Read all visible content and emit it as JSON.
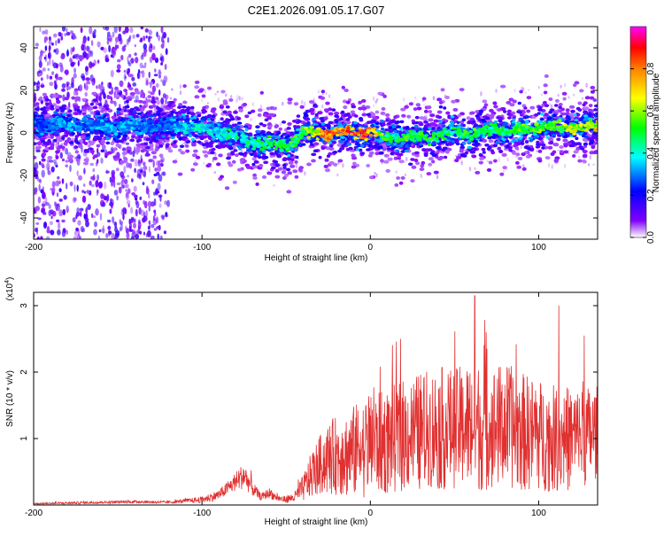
{
  "figure": {
    "title": "C2E1.2026.091.05.17.G07"
  },
  "chart_data": [
    {
      "type": "heatmap",
      "title": "C2E1.2026.091.05.17.G07",
      "xlabel": "Height of straight line (km)",
      "ylabel": "Frequency (Hz)",
      "xlim": [
        -200,
        135
      ],
      "ylim": [
        -50,
        50
      ],
      "xticks": [
        -200,
        -100,
        0,
        100
      ],
      "yticks": [
        -40,
        -20,
        0,
        20,
        40
      ],
      "colorbar": {
        "label": "Normalized spectral amplitude",
        "range": [
          0,
          1
        ],
        "ticks": [
          0.0,
          0.2,
          0.4,
          0.6,
          0.8
        ],
        "tick_labels": [
          "0.0",
          "0.2",
          "0.4",
          "0.6",
          "0.8"
        ],
        "colormap": [
          "#ffffff",
          "#8000ff",
          "#0000ff",
          "#00ffff",
          "#00ff00",
          "#ffff00",
          "#ff8000",
          "#ff0000",
          "#ff00ff"
        ]
      },
      "ridge": {
        "x": [
          -200,
          -190,
          -180,
          -170,
          -160,
          -150,
          -140,
          -130,
          -120,
          -110,
          -100,
          -90,
          -80,
          -70,
          -60,
          -50,
          -40,
          -30,
          -20,
          -10,
          0,
          10,
          20,
          30,
          40,
          50,
          60,
          70,
          80,
          90,
          100,
          110,
          120,
          130
        ],
        "freq": [
          5,
          4,
          4,
          3,
          3,
          3,
          3,
          4,
          3,
          3,
          2,
          1,
          -2,
          -4,
          -5,
          -6,
          0,
          0,
          0,
          0,
          0,
          -2,
          -2,
          -2,
          -1,
          0,
          0,
          1,
          1,
          1,
          3,
          3,
          3,
          3
        ],
        "amplitude": [
          0.3,
          0.3,
          0.35,
          0.3,
          0.35,
          0.35,
          0.35,
          0.3,
          0.3,
          0.4,
          0.4,
          0.4,
          0.5,
          0.45,
          0.5,
          0.5,
          0.55,
          0.8,
          0.9,
          0.9,
          0.85,
          0.5,
          0.55,
          0.55,
          0.5,
          0.5,
          0.55,
          0.5,
          0.5,
          0.55,
          0.6,
          0.55,
          0.65,
          0.7
        ]
      },
      "noise_region": {
        "xmin": -200,
        "xmax": -120
      }
    },
    {
      "type": "line",
      "xlabel": "Height of straight line (km)",
      "ylabel": "SNR (10 * v/v)",
      "scale_label": "(x10",
      "scale_exp": "4",
      "scale_close": ")",
      "xlim": [
        -200,
        135
      ],
      "ylim": [
        0,
        3.2
      ],
      "xticks": [
        -200,
        -100,
        0,
        100
      ],
      "yticks": [
        1,
        2,
        3
      ],
      "color": "#e03030",
      "envelope": {
        "x": [
          -200,
          -180,
          -160,
          -140,
          -120,
          -110,
          -100,
          -90,
          -85,
          -80,
          -75,
          -70,
          -65,
          -60,
          -55,
          -50,
          -45,
          -40,
          -35,
          -30,
          -25,
          -20,
          -15,
          -10,
          -5,
          0,
          10,
          20,
          30,
          40,
          50,
          60,
          70,
          80,
          90,
          100,
          110,
          120,
          130,
          135
        ],
        "mean": [
          0.02,
          0.03,
          0.04,
          0.05,
          0.04,
          0.06,
          0.08,
          0.15,
          0.25,
          0.35,
          0.45,
          0.25,
          0.12,
          0.18,
          0.1,
          0.08,
          0.12,
          0.25,
          0.45,
          0.6,
          0.7,
          0.75,
          0.75,
          0.8,
          0.85,
          0.9,
          0.95,
          1.05,
          1.1,
          1.15,
          1.15,
          1.2,
          1.15,
          1.2,
          1.1,
          1.05,
          1.0,
          1.0,
          1.05,
          1.1
        ],
        "spread": [
          0.01,
          0.02,
          0.02,
          0.02,
          0.02,
          0.03,
          0.05,
          0.08,
          0.1,
          0.15,
          0.2,
          0.12,
          0.05,
          0.08,
          0.05,
          0.05,
          0.08,
          0.2,
          0.35,
          0.45,
          0.55,
          0.6,
          0.65,
          0.7,
          0.75,
          0.75,
          0.8,
          0.85,
          0.9,
          0.95,
          0.9,
          1.0,
          0.95,
          0.95,
          0.9,
          0.85,
          0.8,
          0.8,
          0.75,
          0.7
        ]
      },
      "peaks": [
        {
          "x": 62,
          "y": 3.15
        },
        {
          "x": 112,
          "y": 3.0
        },
        {
          "x": 127,
          "y": 2.55
        },
        {
          "x": 18,
          "y": 2.5
        }
      ]
    }
  ]
}
